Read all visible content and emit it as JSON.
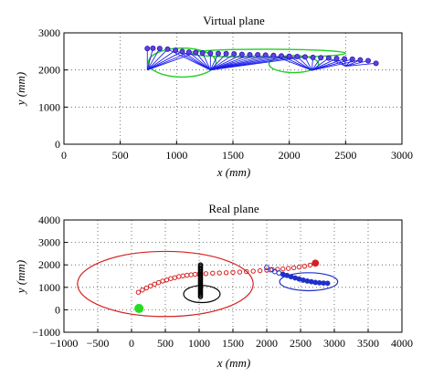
{
  "chart_data": [
    {
      "type": "line",
      "title": "Virtual plane",
      "xlabel": "x (mm)",
      "ylabel": "y (mm)",
      "xlim": [
        0,
        3000
      ],
      "ylim": [
        0,
        3000
      ],
      "xticks": [
        0,
        500,
        1000,
        1500,
        2000,
        2500,
        3000
      ],
      "yticks": [
        0,
        1000,
        2000,
        3000
      ],
      "grid": "dotted",
      "colors": {
        "points": "#1a1acc",
        "links": "#1f1ff0",
        "ellipse": "#22cc22"
      },
      "series": [
        {
          "kind": "trajectory_points",
          "x": [
            740,
            790,
            850,
            920,
            990,
            1050,
            1110,
            1170,
            1230,
            1300,
            1370,
            1440,
            1510,
            1580,
            1650,
            1720,
            1790,
            1860,
            1930,
            2000,
            2070,
            2140,
            2210,
            2280,
            2350,
            2420,
            2490,
            2560,
            2630,
            2700,
            2770
          ],
          "y": [
            2580,
            2585,
            2580,
            2560,
            2530,
            2500,
            2480,
            2470,
            2460,
            2450,
            2440,
            2440,
            2430,
            2420,
            2410,
            2410,
            2400,
            2390,
            2380,
            2370,
            2360,
            2350,
            2340,
            2330,
            2320,
            2310,
            2300,
            2290,
            2270,
            2250,
            2180
          ]
        },
        {
          "kind": "hub_links",
          "hubs": [
            {
              "x": 740,
              "y": 2000,
              "targets": [
                0,
                1,
                2,
                3,
                4,
                5,
                6,
                7
              ]
            },
            {
              "x": 1300,
              "y": 2000,
              "targets": [
                3,
                4,
                5,
                6,
                7,
                8,
                9,
                10,
                11,
                12,
                13,
                14,
                15,
                16,
                17,
                18,
                19,
                20,
                21
              ]
            },
            {
              "x": 2200,
              "y": 1990,
              "targets": [
                17,
                18,
                19,
                20,
                21,
                22,
                23,
                24,
                25,
                26,
                27,
                28
              ]
            },
            {
              "x": 2500,
              "y": 2100,
              "targets": [
                24,
                25,
                26,
                27,
                28,
                29,
                30
              ]
            }
          ]
        },
        {
          "kind": "ellipse",
          "cx": 1050,
          "cy": 2200,
          "rx": 300,
          "ry": 390,
          "color": "#22cc22"
        },
        {
          "kind": "ellipse",
          "cx": 1800,
          "cy": 2450,
          "rx": 700,
          "ry": 110,
          "color": "#22cc22"
        },
        {
          "kind": "ellipse",
          "cx": 2040,
          "cy": 2160,
          "rx": 220,
          "ry": 230,
          "color": "#22cc22"
        }
      ]
    },
    {
      "type": "scatter",
      "title": "Real plane",
      "xlabel": "x (mm)",
      "ylabel": "y (mm)",
      "xlim": [
        -1000,
        4000
      ],
      "ylim": [
        -1000,
        4000
      ],
      "xticks": [
        -1000,
        -500,
        0,
        500,
        1000,
        1500,
        2000,
        2500,
        3000,
        3500,
        4000
      ],
      "yticks": [
        -1000,
        0,
        1000,
        2000,
        3000,
        4000
      ],
      "grid": "dotted",
      "colors": {
        "red": "#d62020",
        "black": "#000000",
        "blue": "#2030c8",
        "green": "#22dd22"
      },
      "series": [
        {
          "kind": "red_trajectory",
          "x": [
            100,
            160,
            220,
            280,
            340,
            400,
            460,
            520,
            580,
            640,
            700,
            760,
            820,
            880,
            940,
            1000,
            1100,
            1200,
            1300,
            1400,
            1500,
            1600,
            1700,
            1800,
            1900,
            2000,
            2080,
            2160,
            2240,
            2320,
            2400,
            2480,
            2560,
            2640,
            2720
          ],
          "y": [
            780,
            880,
            970,
            1060,
            1140,
            1210,
            1280,
            1330,
            1390,
            1430,
            1480,
            1510,
            1540,
            1560,
            1580,
            1590,
            1610,
            1630,
            1640,
            1650,
            1670,
            1680,
            1700,
            1720,
            1740,
            1760,
            1790,
            1800,
            1820,
            1840,
            1870,
            1900,
            1940,
            1990,
            2080
          ]
        },
        {
          "kind": "black_column",
          "x": 1020,
          "y_from": 580,
          "y_to": 2000,
          "count": 24
        },
        {
          "kind": "blue_trajectory",
          "x": [
            2000,
            2060,
            2120,
            2180,
            2240,
            2300,
            2360,
            2420,
            2480,
            2540,
            2600,
            2660,
            2720,
            2780,
            2840,
            2900
          ],
          "y": [
            1880,
            1780,
            1700,
            1640,
            1580,
            1530,
            1470,
            1420,
            1370,
            1320,
            1280,
            1250,
            1220,
            1200,
            1190,
            1180
          ]
        },
        {
          "kind": "green_start",
          "x": 110,
          "y": 60
        },
        {
          "kind": "ellipse",
          "cx": 500,
          "cy": 1150,
          "rx": 1300,
          "ry": 1450,
          "angle": 0,
          "color": "#d62020"
        },
        {
          "kind": "ellipse",
          "cx": 1040,
          "cy": 700,
          "rx": 270,
          "ry": 380,
          "angle": 0,
          "color": "#000000"
        },
        {
          "kind": "ellipse",
          "cx": 2620,
          "cy": 1250,
          "rx": 430,
          "ry": 400,
          "angle": 0,
          "color": "#2030c8"
        }
      ]
    }
  ]
}
